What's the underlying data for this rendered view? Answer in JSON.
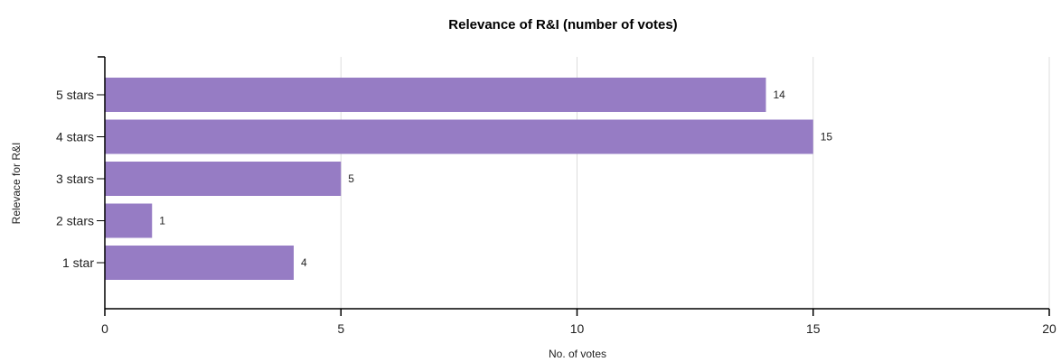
{
  "chart_data": {
    "type": "bar",
    "orientation": "horizontal",
    "title": "Relevance of R&I (number of votes)",
    "xlabel": "No. of votes",
    "ylabel": "Relevace for R&I",
    "categories": [
      "5 stars",
      "4 stars",
      "3 stars",
      "2 stars",
      "1 star"
    ],
    "values": [
      14,
      15,
      5,
      1,
      4
    ],
    "data_labels": [
      "14",
      "15",
      "5",
      "1",
      "4"
    ],
    "xlim": [
      0,
      20
    ],
    "x_ticks": [
      0,
      5,
      10,
      15,
      20
    ],
    "grid": "vertical",
    "legend": "none",
    "bar_color": "#967cc4",
    "grid_color": "#dddddd",
    "axis_color": "#000000"
  }
}
